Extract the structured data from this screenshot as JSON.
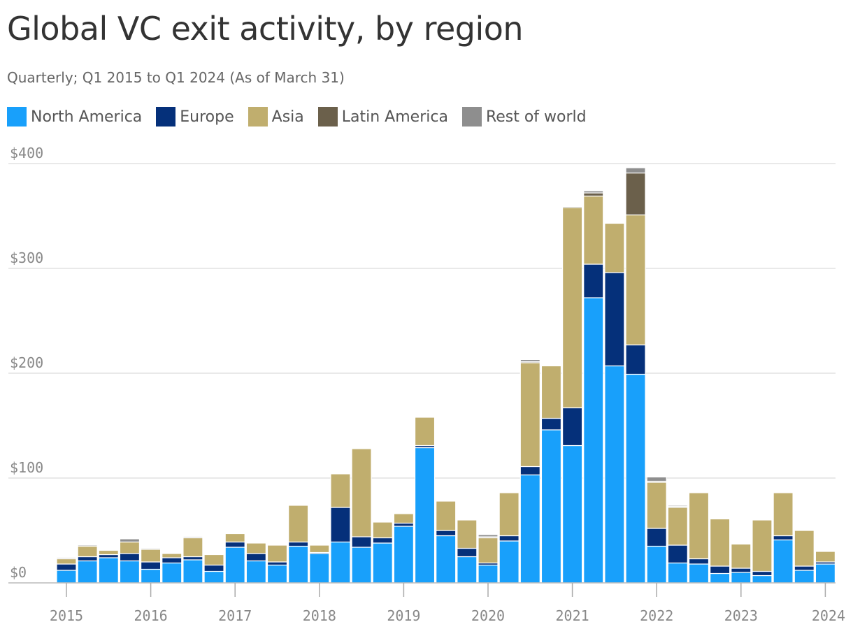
{
  "chart_data": {
    "type": "bar",
    "stacked": true,
    "title": "Global VC exit activity, by region",
    "subtitle": "Quarterly; Q1 2015 to Q1 2024 (As of March 31)",
    "legend_position": "top-left",
    "grid": true,
    "ylim": [
      0,
      400
    ],
    "y_ticks": [
      "$0",
      "$100",
      "$200",
      "$300",
      "$400"
    ],
    "x_ticks": [
      "2015",
      "2016",
      "2017",
      "2018",
      "2019",
      "2020",
      "2021",
      "2022",
      "2023",
      "2024"
    ],
    "categories": [
      "Q1 2015",
      "Q2 2015",
      "Q3 2015",
      "Q4 2015",
      "Q1 2016",
      "Q2 2016",
      "Q3 2016",
      "Q4 2016",
      "Q1 2017",
      "Q2 2017",
      "Q3 2017",
      "Q4 2017",
      "Q1 2018",
      "Q2 2018",
      "Q3 2018",
      "Q4 2018",
      "Q1 2019",
      "Q2 2019",
      "Q3 2019",
      "Q4 2019",
      "Q1 2020",
      "Q2 2020",
      "Q3 2020",
      "Q4 2020",
      "Q1 2021",
      "Q2 2021",
      "Q3 2021",
      "Q4 2021",
      "Q1 2022",
      "Q2 2022",
      "Q3 2022",
      "Q4 2022",
      "Q1 2023",
      "Q2 2023",
      "Q3 2023",
      "Q4 2023",
      "Q1 2024"
    ],
    "series": [
      {
        "name": "North America",
        "color": "#18a0fb",
        "values": [
          12,
          21,
          24,
          21,
          13,
          19,
          22,
          11,
          34,
          21,
          17,
          35,
          28,
          39,
          34,
          38,
          54,
          129,
          45,
          25,
          17,
          40,
          103,
          146,
          131,
          272,
          207,
          199,
          35,
          19,
          18,
          9,
          10,
          7,
          41,
          12,
          18
        ]
      },
      {
        "name": "Europe",
        "color": "#05307a",
        "values": [
          6,
          4,
          3,
          7,
          7,
          5,
          3,
          6,
          5,
          7,
          3,
          4,
          1,
          33,
          10,
          5,
          3,
          2,
          5,
          8,
          2,
          5,
          8,
          11,
          36,
          32,
          89,
          28,
          17,
          17,
          5,
          7,
          4,
          4,
          4,
          4,
          2
        ]
      },
      {
        "name": "Asia",
        "color": "#c0ae6e",
        "values": [
          5,
          10,
          4,
          11,
          12,
          4,
          18,
          10,
          8,
          10,
          16,
          35,
          7,
          32,
          84,
          15,
          9,
          27,
          28,
          27,
          24,
          41,
          99,
          50,
          191,
          65,
          47,
          124,
          44,
          36,
          63,
          45,
          23,
          49,
          41,
          34,
          10
        ]
      },
      {
        "name": "Latin America",
        "color": "#6b604b",
        "values": [
          0,
          0,
          0,
          0,
          0,
          0,
          0,
          0,
          0,
          0,
          0,
          0,
          0,
          0,
          0,
          0,
          0,
          0,
          0,
          0,
          1,
          0,
          1,
          0,
          1,
          3,
          0,
          40,
          1,
          1,
          0,
          0,
          0,
          0,
          0,
          0,
          0
        ]
      },
      {
        "name": "Rest of world",
        "color": "#8e8e8e",
        "values": [
          1,
          1,
          0,
          3,
          1,
          0,
          1,
          0,
          0,
          0,
          0,
          0,
          0,
          0,
          0,
          0,
          0,
          0,
          0,
          0,
          2,
          0,
          2,
          0,
          0,
          2,
          0,
          5,
          4,
          1,
          0,
          0,
          0,
          0,
          0,
          0,
          0
        ]
      }
    ]
  }
}
